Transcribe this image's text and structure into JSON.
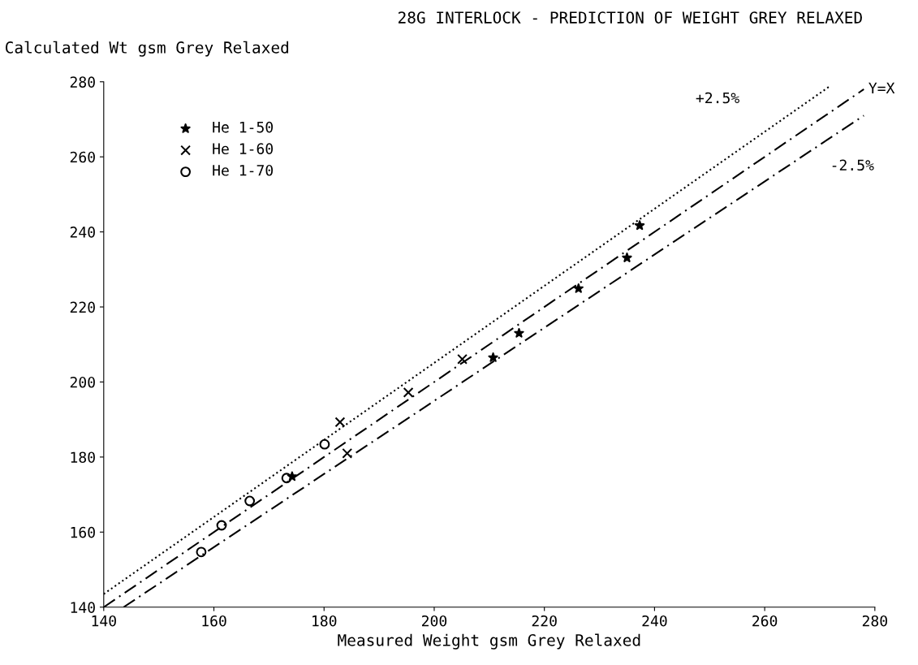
{
  "chart_data": {
    "type": "scatter",
    "title": "28G INTERLOCK - PREDICTION OF WEIGHT GREY RELAXED",
    "ylabel": "Calculated Wt gsm Grey Relaxed",
    "xlabel": "Measured Weight gsm Grey Relaxed",
    "series": [
      {
        "name": "He 1-50",
        "color": "#000000",
        "marker": "star",
        "x": [
          174.2,
          210.7,
          215.4,
          226.2,
          235.0,
          237.3
        ],
        "values": [
          174.8,
          206.5,
          213.0,
          224.9,
          233.1,
          241.7
        ]
      },
      {
        "name": "He 1-60",
        "color": "#000000",
        "marker": "cross",
        "x": [
          182.9,
          184.2,
          195.3,
          205.1
        ],
        "values": [
          189.3,
          181.0,
          197.2,
          206.1
        ]
      },
      {
        "name": "He 1-70",
        "color": "#000000",
        "marker": "circle",
        "x": [
          157.7,
          161.4,
          166.5,
          173.2,
          180.1
        ],
        "values": [
          154.7,
          161.8,
          168.3,
          174.4,
          183.4
        ]
      },
      {
        "type": "line",
        "name": "+2.5%",
        "color": "#000000",
        "line_style": "dotted",
        "x": [
          140,
          272
        ],
        "values": [
          143.5,
          279
        ]
      },
      {
        "type": "line",
        "name": "Y=X",
        "color": "#000000",
        "line_style": "dashed",
        "x": [
          140,
          278
        ],
        "values": [
          140,
          278
        ]
      },
      {
        "type": "line",
        "name": "-2.5%",
        "color": "#000000",
        "line_style": "dashed",
        "x": [
          143.6,
          278
        ],
        "values": [
          140,
          271
        ]
      }
    ],
    "xlim": [
      140,
      280
    ],
    "ylim": [
      140,
      280
    ],
    "xticks": [
      140,
      160,
      180,
      200,
      220,
      240,
      260,
      280
    ],
    "yticks": [
      140,
      160,
      180,
      200,
      220,
      240,
      260,
      280
    ],
    "grid": false,
    "legend": "top left"
  }
}
